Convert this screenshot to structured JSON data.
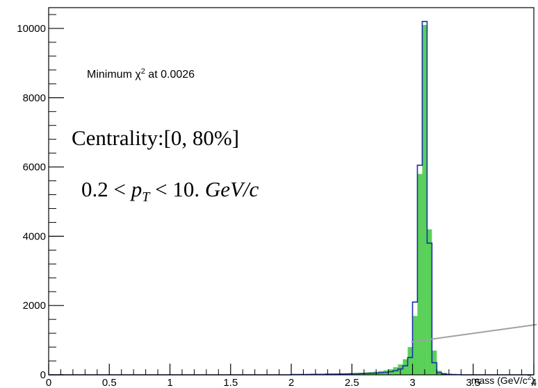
{
  "chart_data": {
    "type": "bar",
    "title": "",
    "xlabel": "mass (GeV/c",
    "xlabel_sup": "2",
    "xlabel_close": ")",
    "ylabel": "",
    "xlim": [
      0,
      4
    ],
    "ylim": [
      0,
      10600
    ],
    "grid": false,
    "x_ticks": [
      {
        "value": 0,
        "label": "0"
      },
      {
        "value": 0.5,
        "label": "0.5"
      },
      {
        "value": 1,
        "label": "1"
      },
      {
        "value": 1.5,
        "label": "1.5"
      },
      {
        "value": 2,
        "label": "2"
      },
      {
        "value": 2.5,
        "label": "2.5"
      },
      {
        "value": 3,
        "label": "3"
      },
      {
        "value": 3.5,
        "label": "3.5"
      },
      {
        "value": 4,
        "label": "4"
      }
    ],
    "y_ticks": [
      {
        "value": 0,
        "label": "0"
      },
      {
        "value": 2000,
        "label": "2000"
      },
      {
        "value": 4000,
        "label": "4000"
      },
      {
        "value": 6000,
        "label": "6000"
      },
      {
        "value": 8000,
        "label": "8000"
      },
      {
        "value": 10000,
        "label": "10000"
      }
    ],
    "bin_width": 0.04,
    "series": [
      {
        "style": "filled",
        "color": "#59d159",
        "bins": [
          {
            "x": 2.0,
            "y": 20
          },
          {
            "x": 2.04,
            "y": 20
          },
          {
            "x": 2.08,
            "y": 20
          },
          {
            "x": 2.12,
            "y": 25
          },
          {
            "x": 2.16,
            "y": 25
          },
          {
            "x": 2.2,
            "y": 30
          },
          {
            "x": 2.24,
            "y": 30
          },
          {
            "x": 2.28,
            "y": 35
          },
          {
            "x": 2.32,
            "y": 35
          },
          {
            "x": 2.36,
            "y": 40
          },
          {
            "x": 2.4,
            "y": 40
          },
          {
            "x": 2.44,
            "y": 45
          },
          {
            "x": 2.48,
            "y": 50
          },
          {
            "x": 2.52,
            "y": 55
          },
          {
            "x": 2.56,
            "y": 60
          },
          {
            "x": 2.6,
            "y": 70
          },
          {
            "x": 2.64,
            "y": 80
          },
          {
            "x": 2.68,
            "y": 90
          },
          {
            "x": 2.72,
            "y": 110
          },
          {
            "x": 2.76,
            "y": 130
          },
          {
            "x": 2.8,
            "y": 160
          },
          {
            "x": 2.84,
            "y": 220
          },
          {
            "x": 2.88,
            "y": 300
          },
          {
            "x": 2.92,
            "y": 450
          },
          {
            "x": 2.96,
            "y": 800
          },
          {
            "x": 3.0,
            "y": 1700
          },
          {
            "x": 3.04,
            "y": 5800
          },
          {
            "x": 3.08,
            "y": 10100
          },
          {
            "x": 3.12,
            "y": 4200
          },
          {
            "x": 3.16,
            "y": 700
          },
          {
            "x": 3.2,
            "y": 120
          },
          {
            "x": 3.24,
            "y": 60
          },
          {
            "x": 3.28,
            "y": 30
          },
          {
            "x": 3.32,
            "y": 15
          },
          {
            "x": 3.36,
            "y": 10
          }
        ]
      },
      {
        "style": "outline",
        "color": "#1a2ea6",
        "bins": [
          {
            "x": 2.0,
            "y": 10
          },
          {
            "x": 2.04,
            "y": 10
          },
          {
            "x": 2.08,
            "y": 10
          },
          {
            "x": 2.12,
            "y": 10
          },
          {
            "x": 2.16,
            "y": 15
          },
          {
            "x": 2.2,
            "y": 15
          },
          {
            "x": 2.24,
            "y": 15
          },
          {
            "x": 2.28,
            "y": 20
          },
          {
            "x": 2.32,
            "y": 20
          },
          {
            "x": 2.36,
            "y": 20
          },
          {
            "x": 2.4,
            "y": 25
          },
          {
            "x": 2.44,
            "y": 25
          },
          {
            "x": 2.48,
            "y": 30
          },
          {
            "x": 2.52,
            "y": 30
          },
          {
            "x": 2.56,
            "y": 35
          },
          {
            "x": 2.6,
            "y": 40
          },
          {
            "x": 2.64,
            "y": 45
          },
          {
            "x": 2.68,
            "y": 50
          },
          {
            "x": 2.72,
            "y": 60
          },
          {
            "x": 2.76,
            "y": 70
          },
          {
            "x": 2.8,
            "y": 90
          },
          {
            "x": 2.84,
            "y": 120
          },
          {
            "x": 2.88,
            "y": 170
          },
          {
            "x": 2.92,
            "y": 260
          },
          {
            "x": 2.96,
            "y": 500
          },
          {
            "x": 3.0,
            "y": 2100
          },
          {
            "x": 3.04,
            "y": 6050
          },
          {
            "x": 3.08,
            "y": 10200
          },
          {
            "x": 3.12,
            "y": 3800
          },
          {
            "x": 3.16,
            "y": 350
          },
          {
            "x": 3.2,
            "y": 60
          },
          {
            "x": 3.24,
            "y": 25
          },
          {
            "x": 3.28,
            "y": 15
          },
          {
            "x": 3.32,
            "y": 8
          },
          {
            "x": 3.36,
            "y": 5
          }
        ]
      },
      {
        "style": "line",
        "color": "#a0a0a0",
        "points": [
          {
            "x": 2.99,
            "y": 950
          },
          {
            "x": 4.05,
            "y": 1450
          }
        ]
      }
    ],
    "annotations": {
      "chi2_prefix": "Minimum χ",
      "chi2_sup": "2",
      "chi2_suffix": " at 0.0026",
      "centrality": "Centrality:[0, 80%]",
      "pt_left": "0.2 < ",
      "pt_var": "p",
      "pt_sub": "T",
      "pt_right": " < 10. ",
      "pt_unit": "GeV/c"
    }
  }
}
